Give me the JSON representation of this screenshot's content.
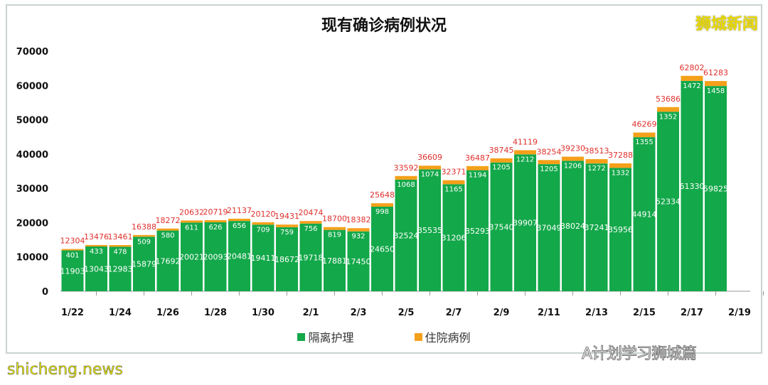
{
  "brand": "狮城新闻",
  "watermarks": {
    "wechat": "A计划学习狮城篇",
    "site": "shicheng.news"
  },
  "colors": {
    "isolation": "#13a84a",
    "hospital": "#f5a01a",
    "total_label": "#e0302c",
    "inner_label": "#ffffff"
  },
  "chart_data": {
    "type": "bar",
    "stacked": true,
    "title": "现有确诊病例状况",
    "categories": [
      "1/22",
      "1/23",
      "1/24",
      "1/25",
      "1/26",
      "1/27",
      "1/28",
      "1/29",
      "1/30",
      "1/31",
      "2/1",
      "2/2",
      "2/3",
      "2/4",
      "2/5",
      "2/6",
      "2/7",
      "2/8",
      "2/9",
      "2/10",
      "2/11",
      "2/12",
      "2/13",
      "2/14",
      "2/15",
      "2/16",
      "2/17",
      "2/18"
    ],
    "x_tick_labels": [
      "1/22",
      "1/24",
      "1/26",
      "1/28",
      "1/30",
      "2/1",
      "2/3",
      "2/5",
      "2/7",
      "2/9",
      "2/11",
      "2/13",
      "2/15",
      "2/17",
      "2/19"
    ],
    "series": [
      {
        "name": "隔离护理",
        "values": [
          11903,
          13043,
          12983,
          15879,
          17692,
          20021,
          20093,
          20481,
          19411,
          18672,
          19718,
          17881,
          17450,
          24650,
          32524,
          35535,
          31206,
          35293,
          37540,
          39907,
          37049,
          38024,
          37241,
          35956,
          44914,
          52334,
          61330,
          59825
        ]
      },
      {
        "name": "住院病例",
        "values": [
          401,
          433,
          478,
          509,
          580,
          611,
          626,
          656,
          709,
          759,
          756,
          819,
          932,
          998,
          1068,
          1074,
          1165,
          1194,
          1205,
          1212,
          1205,
          1206,
          1272,
          1332,
          1355,
          1352,
          1472,
          1458
        ]
      }
    ],
    "totals": [
      12304,
      13476,
      13461,
      16388,
      18272,
      20632,
      20719,
      21137,
      20120,
      19431,
      20474,
      18700,
      18382,
      25648,
      33592,
      36609,
      32371,
      36487,
      38745,
      41119,
      38254,
      39230,
      38513,
      37288,
      46269,
      53686,
      62802,
      61283
    ],
    "y_ticks": [
      0,
      10000,
      20000,
      30000,
      40000,
      50000,
      60000,
      70000
    ],
    "ylim": [
      0,
      70000
    ],
    "xlabel": "",
    "ylabel": "",
    "grid": false,
    "legend": "bottom"
  }
}
